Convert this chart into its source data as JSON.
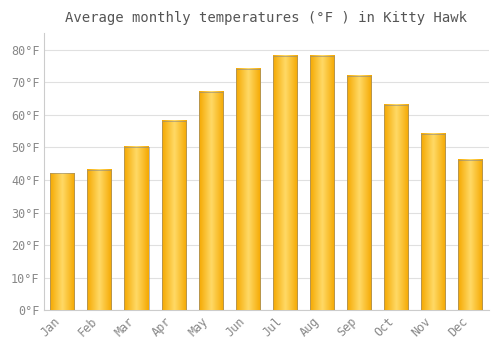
{
  "title": "Average monthly temperatures (°F ) in Kitty Hawk",
  "months": [
    "Jan",
    "Feb",
    "Mar",
    "Apr",
    "May",
    "Jun",
    "Jul",
    "Aug",
    "Sep",
    "Oct",
    "Nov",
    "Dec"
  ],
  "values": [
    42,
    43,
    50,
    58,
    67,
    74,
    78,
    78,
    72,
    63,
    54,
    46
  ],
  "bar_color": "#F5A800",
  "bar_color_light": "#FFD966",
  "background_color": "#ffffff",
  "plot_bg_color": "#ffffff",
  "grid_color": "#e0e0e0",
  "text_color": "#888888",
  "ylim": [
    0,
    85
  ],
  "yticks": [
    0,
    10,
    20,
    30,
    40,
    50,
    60,
    70,
    80
  ],
  "title_fontsize": 10,
  "tick_fontsize": 8.5,
  "bar_width": 0.65
}
